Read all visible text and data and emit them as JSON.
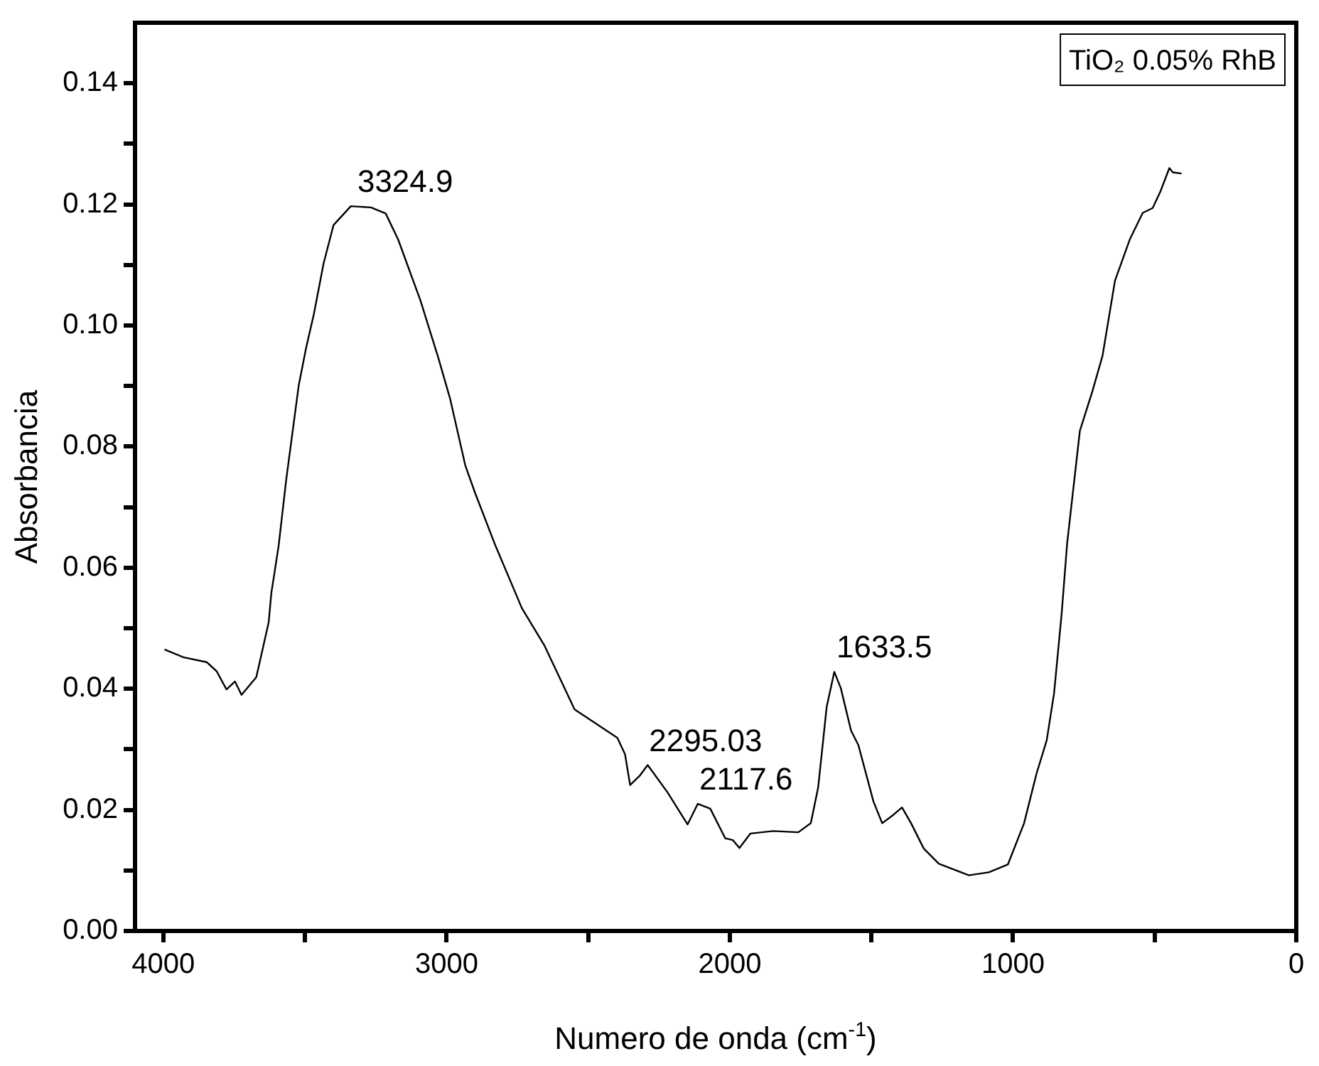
{
  "chart_data": {
    "type": "line",
    "xlabel": "Numero de onda (cm$^{-1}$)",
    "ylabel": "Absorbancia",
    "xlim": [
      4100,
      0
    ],
    "ylim": [
      0,
      0.15
    ],
    "xticks": [
      4000,
      {
        "value": 3500,
        "label": null
      },
      3000,
      {
        "value": 2500,
        "label": null
      },
      2000,
      {
        "value": 1500,
        "label": null
      },
      1000,
      {
        "value": 500,
        "label": null
      },
      0
    ],
    "yticks": [
      {
        "value": 0,
        "label": "0.00"
      },
      {
        "value": 0.01,
        "label": null
      },
      {
        "value": 0.02,
        "label": "0.02"
      },
      {
        "value": 0.03,
        "label": null
      },
      {
        "value": 0.04,
        "label": "0.04"
      },
      {
        "value": 0.05,
        "label": null
      },
      {
        "value": 0.06,
        "label": "0.06"
      },
      {
        "value": 0.07,
        "label": null
      },
      {
        "value": 0.08,
        "label": "0.08"
      },
      {
        "value": 0.09,
        "label": null
      },
      {
        "value": 0.1,
        "label": "0.10"
      },
      {
        "value": 0.11,
        "label": null
      },
      {
        "value": 0.12,
        "label": "0.12"
      },
      {
        "value": 0.13,
        "label": null
      },
      {
        "value": 0.14,
        "label": "0.14"
      }
    ],
    "grid": false,
    "legend": "top right",
    "marker": "none",
    "line_style": "solid",
    "x": [
      3996,
      3929,
      3847,
      3812,
      3777,
      3747,
      3724,
      3672,
      3654,
      3628,
      3619,
      3593,
      3566,
      3522,
      3496,
      3469,
      3434,
      3399,
      3338,
      3267,
      3215,
      3171,
      3092,
      3030,
      2987,
      2934,
      2899,
      2828,
      2734,
      2654,
      2548,
      2397,
      2370,
      2352,
      2317,
      2290,
      2220,
      2149,
      2113,
      2069,
      2016,
      1989,
      1966,
      1927,
      1847,
      1758,
      1714,
      1688,
      1658,
      1631,
      1608,
      1572,
      1546,
      1493,
      1462,
      1422,
      1392,
      1360,
      1315,
      1262,
      1156,
      1085,
      1018,
      961,
      917,
      881,
      855,
      828,
      809,
      764,
      720,
      684,
      640,
      587,
      542,
      507,
      480,
      448,
      436,
      405
    ],
    "series": [
      {
        "name": "TiO₂ 0.05% RhB",
        "color": "#000000",
        "values": [
          0.0465,
          0.0452,
          0.0444,
          0.0429,
          0.0399,
          0.0412,
          0.039,
          0.0419,
          0.0456,
          0.051,
          0.0557,
          0.0636,
          0.0746,
          0.0901,
          0.0963,
          0.1018,
          0.1103,
          0.1166,
          0.1197,
          0.1195,
          0.1185,
          0.1142,
          0.1041,
          0.0948,
          0.0878,
          0.0769,
          0.0723,
          0.0637,
          0.0533,
          0.0471,
          0.0366,
          0.0319,
          0.0292,
          0.0241,
          0.0257,
          0.0274,
          0.0229,
          0.0176,
          0.021,
          0.0202,
          0.0153,
          0.015,
          0.0137,
          0.0161,
          0.0165,
          0.0163,
          0.0178,
          0.0237,
          0.037,
          0.0428,
          0.0401,
          0.0331,
          0.0307,
          0.0214,
          0.0178,
          0.0192,
          0.0204,
          0.0178,
          0.0136,
          0.0111,
          0.0092,
          0.0097,
          0.011,
          0.0178,
          0.026,
          0.0315,
          0.0393,
          0.0526,
          0.064,
          0.0826,
          0.0891,
          0.095,
          0.1074,
          0.1143,
          0.1186,
          0.1194,
          0.1221,
          0.126,
          0.1253,
          0.1251
        ]
      }
    ],
    "annotations": [
      {
        "text": "3324.9",
        "x": 3324.9,
        "y": 0.1197
      },
      {
        "text": "2295.03",
        "x": 2295.03,
        "y": 0.0274
      },
      {
        "text": "2117.6",
        "x": 2117.6,
        "y": 0.021
      },
      {
        "text": "1633.5",
        "x": 1633.5,
        "y": 0.0428
      }
    ]
  }
}
